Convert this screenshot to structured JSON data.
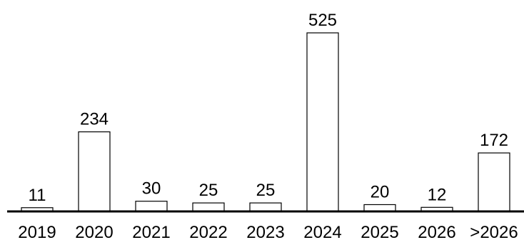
{
  "chart_data": {
    "type": "bar",
    "categories": [
      "2019",
      "2020",
      "2021",
      "2022",
      "2023",
      "2024",
      "2025",
      "2026",
      ">2026"
    ],
    "values": [
      11,
      234,
      30,
      25,
      25,
      525,
      20,
      12,
      172
    ],
    "data_labels": [
      "11",
      "234",
      "30",
      "25",
      "25",
      "525",
      "20",
      "12",
      "172"
    ],
    "title": "",
    "xlabel": "",
    "ylabel": "",
    "ylim": [
      0,
      525
    ],
    "grid": false,
    "legend": "none",
    "bar_fill": "#ffffff",
    "bar_stroke": "#000000"
  }
}
